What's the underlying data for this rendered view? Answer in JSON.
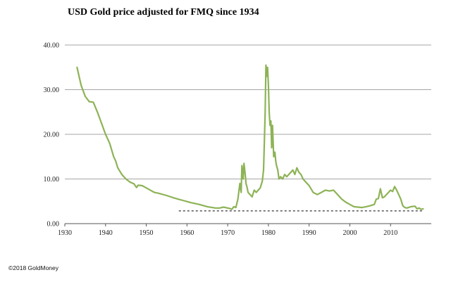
{
  "header": {
    "title": "USD Gold price adjusted for FMQ since 1934"
  },
  "footer": {
    "copyright": "©2018 GoldMoney"
  },
  "chart_data": {
    "type": "line",
    "title": "USD Gold price adjusted for FMQ since 1934",
    "xlabel": "",
    "ylabel": "",
    "xlim": [
      1930,
      2020
    ],
    "ylim": [
      0,
      40
    ],
    "x_ticks": [
      "1930",
      "1940",
      "1950",
      "1960",
      "1970",
      "1980",
      "1990",
      "2000",
      "2010"
    ],
    "y_ticks": [
      "0.00",
      "10.00",
      "20.00",
      "30.00",
      "40.00"
    ],
    "grid": "horizontal",
    "colors": {
      "series": "#8db356",
      "reference": "#333333",
      "grid": "#a6a6a6"
    },
    "reference_line": {
      "style": "dashed",
      "x_start": 1958,
      "x_end": 2018,
      "y": 2.85
    },
    "series": [
      {
        "x": [
          1933.0,
          1934.0,
          1935.0,
          1936.0,
          1937.0,
          1938.0,
          1939.0,
          1940.0,
          1941.0,
          1942.0,
          1942.5,
          1943.0,
          1944.0,
          1945.0,
          1946.0,
          1947.0,
          1947.6,
          1948.0,
          1949.0,
          1950.0,
          1951.0,
          1952.0,
          1953.0,
          1955.0,
          1957.0,
          1959.0,
          1961.0,
          1963.0,
          1965.0,
          1967.0,
          1968.0,
          1969.0,
          1970.0,
          1970.5,
          1971.0,
          1971.5,
          1972.0,
          1972.5,
          1973.0,
          1973.3,
          1973.5,
          1973.8,
          1974.0,
          1974.3,
          1974.5,
          1974.8,
          1975.0,
          1975.5,
          1976.0,
          1976.5,
          1977.0,
          1977.5,
          1978.0,
          1978.5,
          1978.8,
          1979.0,
          1979.2,
          1979.4,
          1979.6,
          1979.8,
          1980.0,
          1980.2,
          1980.4,
          1980.6,
          1980.8,
          1981.0,
          1981.3,
          1981.6,
          1981.8,
          1982.0,
          1982.3,
          1982.6,
          1983.0,
          1983.5,
          1984.0,
          1984.5,
          1985.0,
          1985.5,
          1986.0,
          1986.5,
          1987.0,
          1987.5,
          1988.0,
          1988.5,
          1989.0,
          1989.5,
          1990.0,
          1991.0,
          1992.0,
          1993.0,
          1994.0,
          1995.0,
          1996.0,
          1997.0,
          1998.0,
          1999.0,
          2000.0,
          2001.0,
          2002.0,
          2003.0,
          2004.0,
          2005.0,
          2006.0,
          2006.5,
          2007.0,
          2007.5,
          2008.0,
          2008.5,
          2009.0,
          2009.5,
          2010.0,
          2010.5,
          2011.0,
          2011.5,
          2012.0,
          2012.5,
          2013.0,
          2013.5,
          2014.0,
          2015.0,
          2016.0,
          2016.5,
          2017.0,
          2017.5,
          2018.0
        ],
        "y": [
          35.0,
          31.0,
          28.5,
          27.3,
          27.2,
          25.0,
          22.5,
          20.0,
          18.0,
          15.0,
          14.0,
          12.5,
          11.0,
          10.0,
          9.3,
          8.9,
          8.1,
          8.6,
          8.5,
          8.0,
          7.5,
          7.0,
          6.8,
          6.3,
          5.7,
          5.2,
          4.7,
          4.3,
          3.8,
          3.5,
          3.5,
          3.7,
          3.5,
          3.4,
          3.2,
          3.8,
          3.6,
          5.5,
          9.0,
          7.0,
          13.0,
          10.0,
          13.5,
          11.0,
          9.0,
          8.0,
          7.0,
          6.5,
          6.0,
          7.5,
          7.0,
          7.5,
          8.0,
          9.5,
          12.0,
          18.0,
          25.0,
          35.5,
          33.0,
          35.0,
          31.0,
          25.0,
          22.0,
          23.0,
          17.0,
          22.0,
          15.0,
          16.0,
          14.0,
          13.0,
          12.0,
          10.0,
          10.5,
          10.0,
          11.0,
          10.5,
          11.0,
          11.5,
          12.0,
          11.0,
          12.5,
          11.5,
          11.0,
          10.0,
          9.5,
          9.0,
          8.5,
          7.0,
          6.5,
          7.0,
          7.5,
          7.3,
          7.5,
          6.5,
          5.5,
          4.8,
          4.3,
          3.8,
          3.7,
          3.6,
          3.8,
          4.0,
          4.3,
          5.5,
          5.6,
          7.8,
          5.8,
          6.0,
          6.5,
          7.0,
          7.5,
          7.2,
          8.3,
          7.5,
          6.5,
          5.5,
          4.0,
          3.6,
          3.5,
          3.8,
          3.9,
          3.3,
          3.5,
          3.2,
          3.3
        ]
      }
    ]
  }
}
